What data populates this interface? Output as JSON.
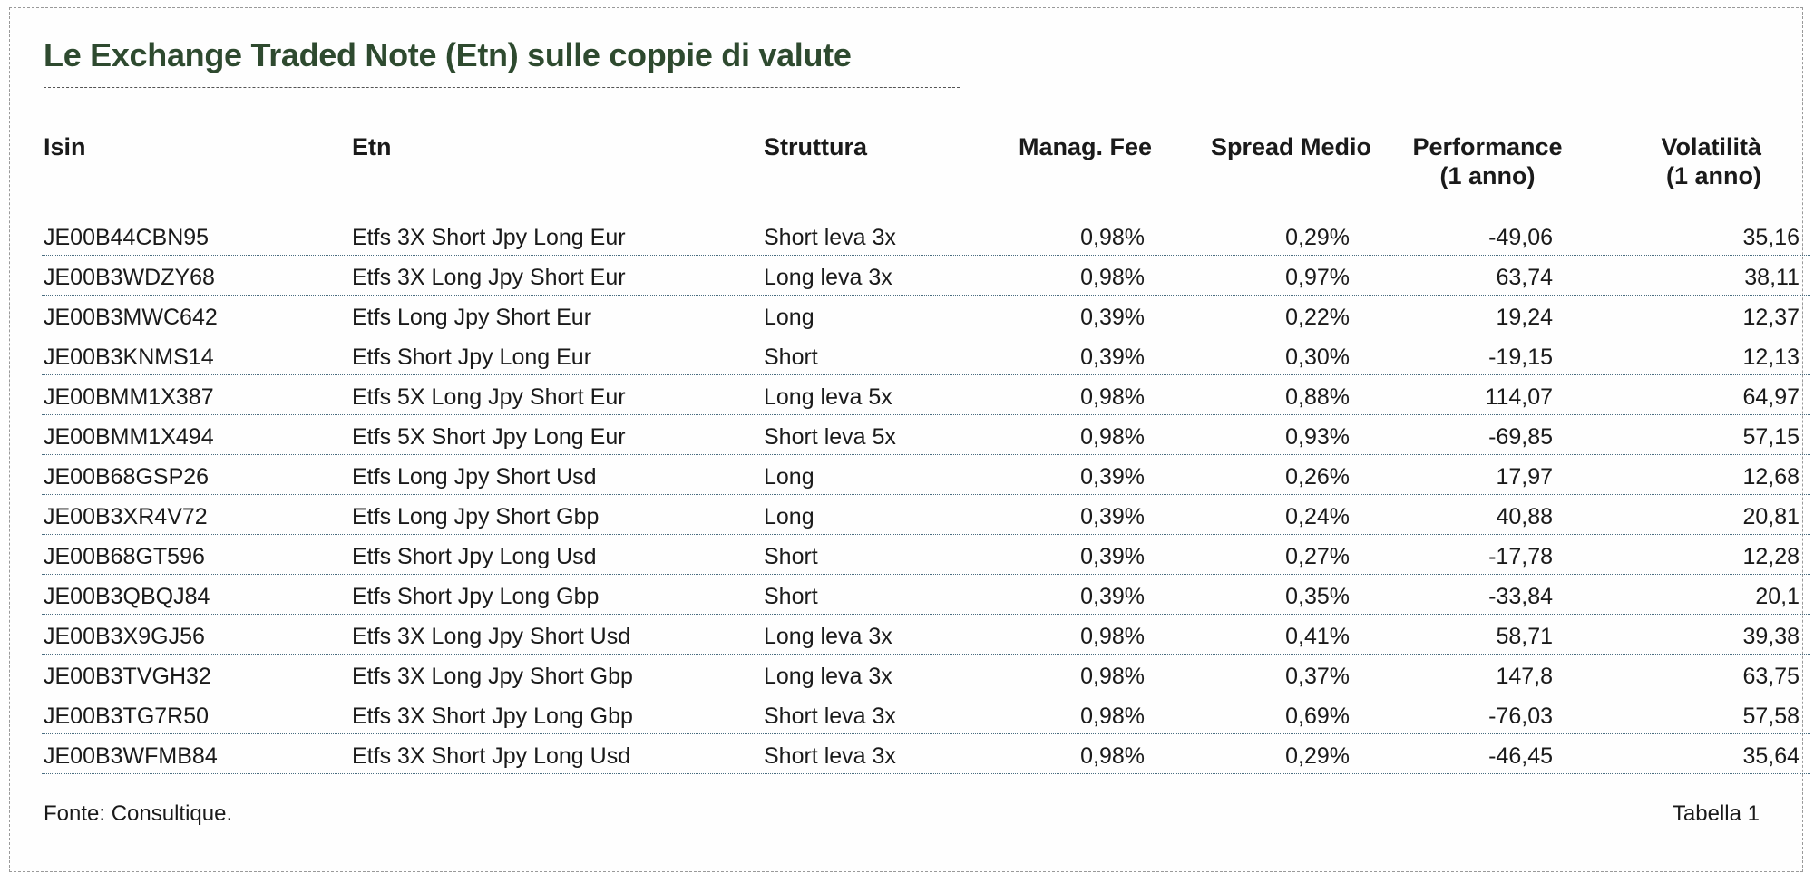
{
  "title": "Le Exchange Traded Note (Etn) sulle coppie di valute",
  "headers": {
    "isin": "Isin",
    "etn": "Etn",
    "struttura": "Struttura",
    "fee": "Manag. Fee",
    "spread": "Spread Medio",
    "performance_1": "Performance",
    "performance_2": "(1 anno)",
    "volatilita_1": "Volatilità",
    "volatilita_2": "(1 anno)"
  },
  "rows": [
    {
      "isin": "JE00B44CBN95",
      "etn": "Etfs 3X Short Jpy Long Eur",
      "struttura": "Short leva 3x",
      "fee": "0,98%",
      "spread": "0,29%",
      "performance": "-49,06",
      "volatilita": "35,16"
    },
    {
      "isin": "JE00B3WDZY68",
      "etn": "Etfs 3X Long Jpy Short Eur",
      "struttura": "Long leva 3x",
      "fee": "0,98%",
      "spread": "0,97%",
      "performance": "63,74",
      "volatilita": "38,11"
    },
    {
      "isin": "JE00B3MWC642",
      "etn": "Etfs Long Jpy Short Eur",
      "struttura": "Long",
      "fee": "0,39%",
      "spread": "0,22%",
      "performance": "19,24",
      "volatilita": "12,37"
    },
    {
      "isin": "JE00B3KNMS14",
      "etn": "Etfs Short Jpy Long Eur",
      "struttura": "Short",
      "fee": "0,39%",
      "spread": "0,30%",
      "performance": "-19,15",
      "volatilita": "12,13"
    },
    {
      "isin": "JE00BMM1X387",
      "etn": "Etfs 5X Long Jpy Short Eur",
      "struttura": "Long leva 5x",
      "fee": "0,98%",
      "spread": "0,88%",
      "performance": "114,07",
      "volatilita": "64,97"
    },
    {
      "isin": "JE00BMM1X494",
      "etn": "Etfs 5X Short Jpy Long Eur",
      "struttura": "Short leva 5x",
      "fee": "0,98%",
      "spread": "0,93%",
      "performance": "-69,85",
      "volatilita": "57,15"
    },
    {
      "isin": "JE00B68GSP26",
      "etn": "Etfs Long Jpy Short Usd",
      "struttura": "Long",
      "fee": "0,39%",
      "spread": "0,26%",
      "performance": "17,97",
      "volatilita": "12,68"
    },
    {
      "isin": "JE00B3XR4V72",
      "etn": "Etfs Long Jpy Short Gbp",
      "struttura": "Long",
      "fee": "0,39%",
      "spread": "0,24%",
      "performance": "40,88",
      "volatilita": "20,81"
    },
    {
      "isin": "JE00B68GT596",
      "etn": "Etfs Short Jpy Long Usd",
      "struttura": "Short",
      "fee": "0,39%",
      "spread": "0,27%",
      "performance": "-17,78",
      "volatilita": "12,28"
    },
    {
      "isin": "JE00B3QBQJ84",
      "etn": "Etfs Short Jpy Long Gbp",
      "struttura": "Short",
      "fee": "0,39%",
      "spread": "0,35%",
      "performance": "-33,84",
      "volatilita": "20,1"
    },
    {
      "isin": "JE00B3X9GJ56",
      "etn": "Etfs 3X Long Jpy Short Usd",
      "struttura": "Long leva 3x",
      "fee": "0,98%",
      "spread": "0,41%",
      "performance": "58,71",
      "volatilita": "39,38"
    },
    {
      "isin": "JE00B3TVGH32",
      "etn": "Etfs 3X Long Jpy Short Gbp",
      "struttura": "Long leva 3x",
      "fee": "0,98%",
      "spread": "0,37%",
      "performance": "147,8",
      "volatilita": "63,75"
    },
    {
      "isin": "JE00B3TG7R50",
      "etn": "Etfs 3X Short Jpy Long Gbp",
      "struttura": "Short leva 3x",
      "fee": "0,98%",
      "spread": "0,69%",
      "performance": "-76,03",
      "volatilita": "57,58"
    },
    {
      "isin": "JE00B3WFMB84",
      "etn": "Etfs 3X Short Jpy Long Usd",
      "struttura": "Short leva 3x",
      "fee": "0,98%",
      "spread": "0,29%",
      "performance": "-46,45",
      "volatilita": "35,64"
    }
  ],
  "source": "Fonte: Consultique.",
  "table_ref": "Tabella 1",
  "colors": {
    "title": "#2e4a2f",
    "row_rule": "#4a6d80"
  }
}
